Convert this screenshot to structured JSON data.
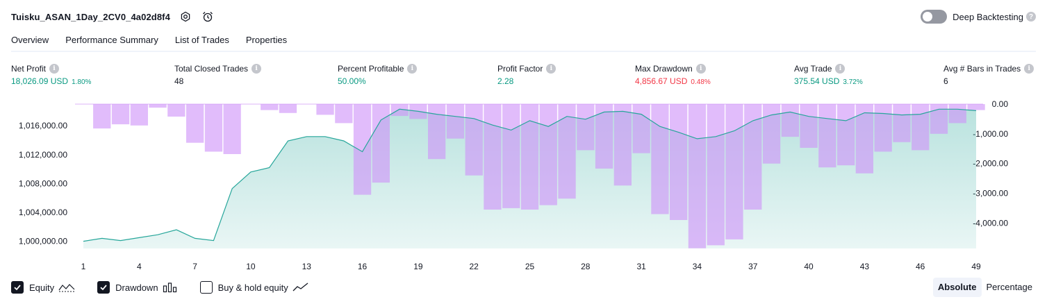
{
  "header": {
    "strategy_name": "Tuisku_ASAN_1Day_2CV0_4a02d8f4",
    "deep_backtesting_label": "Deep Backtesting"
  },
  "tabs": [
    {
      "label": "Overview",
      "active": true
    },
    {
      "label": "Performance Summary",
      "active": false
    },
    {
      "label": "List of Trades",
      "active": false
    },
    {
      "label": "Properties",
      "active": false
    }
  ],
  "metrics": {
    "net_profit": {
      "label": "Net Profit",
      "value": "18,026.09 USD",
      "pct": "1.80%"
    },
    "total_closed_trades": {
      "label": "Total Closed Trades",
      "value": "48"
    },
    "percent_profitable": {
      "label": "Percent Profitable",
      "value": "50.00%"
    },
    "profit_factor": {
      "label": "Profit Factor",
      "value": "2.28"
    },
    "max_drawdown": {
      "label": "Max Drawdown",
      "value": "4,856.67 USD",
      "pct": "0.48%"
    },
    "avg_trade": {
      "label": "Avg Trade",
      "value": "375.54 USD",
      "pct": "3.72%"
    },
    "avg_bars": {
      "label": "Avg # Bars in Trades",
      "value": "6"
    }
  },
  "legend": {
    "equity": "Equity",
    "drawdown": "Drawdown",
    "buy_hold": "Buy & hold equity"
  },
  "scale_buttons": {
    "absolute": "Absolute",
    "percentage": "Percentage"
  },
  "colors": {
    "equity_line": "#26a69a",
    "drawdown_bar": "#ce93f8",
    "positive": "#089981",
    "negative": "#f23645"
  },
  "chart_data": {
    "type": "bar",
    "x": [
      1,
      2,
      3,
      4,
      5,
      6,
      7,
      8,
      9,
      10,
      11,
      12,
      13,
      14,
      15,
      16,
      17,
      18,
      19,
      20,
      21,
      22,
      23,
      24,
      25,
      26,
      27,
      28,
      29,
      30,
      31,
      32,
      33,
      34,
      35,
      36,
      37,
      38,
      39,
      40,
      41,
      42,
      43,
      44,
      45,
      46,
      47,
      48,
      49
    ],
    "x_tick_labels": [
      "1",
      "4",
      "7",
      "10",
      "13",
      "16",
      "19",
      "22",
      "25",
      "28",
      "31",
      "34",
      "37",
      "40",
      "43",
      "46",
      "49"
    ],
    "series": [
      {
        "name": "Equity",
        "kind": "area",
        "axis": "left",
        "values": [
          1000000,
          1000400,
          1000100,
          1000500,
          1000900,
          1001600,
          1000400,
          1000100,
          1007300,
          1009600,
          1010200,
          1013900,
          1014500,
          1014500,
          1013900,
          1012400,
          1016800,
          1018300,
          1018000,
          1017600,
          1017300,
          1017000,
          1016100,
          1015400,
          1016700,
          1015900,
          1017300,
          1016900,
          1017900,
          1018000,
          1017600,
          1015900,
          1015100,
          1014200,
          1014500,
          1015300,
          1016700,
          1017500,
          1017900,
          1017300,
          1017000,
          1016700,
          1017800,
          1017700,
          1017500,
          1017600,
          1018300,
          1018300,
          1018100
        ]
      },
      {
        "name": "Drawdown",
        "kind": "bar",
        "axis": "right",
        "values": [
          0,
          -820,
          -680,
          -720,
          -120,
          -420,
          -1300,
          -1600,
          -1680,
          0,
          -200,
          -300,
          0,
          -360,
          -640,
          -3050,
          -2640,
          -400,
          -500,
          -1850,
          -1160,
          -2400,
          -3550,
          -3500,
          -3550,
          -3400,
          -3180,
          -1550,
          -2170,
          -2740,
          -1650,
          -3700,
          -3900,
          -4850,
          -4750,
          -4550,
          -3550,
          -2000,
          -1100,
          -1470,
          -2130,
          -2060,
          -2330,
          -1600,
          -1280,
          -1550,
          -1000,
          -640,
          -200
        ]
      }
    ],
    "y_left": {
      "ylim": [
        999000,
        1019000
      ],
      "tick_values": [
        1000000,
        1004000,
        1008000,
        1012000,
        1016000
      ],
      "tick_labels": [
        "1,000,000.00",
        "1,004,000.00",
        "1,008,000.00",
        "1,012,000.00",
        "1,016,000.00"
      ]
    },
    "y_right": {
      "ylim": [
        -4856.67,
        0
      ],
      "tick_values": [
        0,
        -1000,
        -2000,
        -3000,
        -4000
      ],
      "tick_labels": [
        "0.00",
        "-1,000.00",
        "-2,000.00",
        "-3,000.00",
        "-4,000.00"
      ]
    },
    "grid": false
  }
}
